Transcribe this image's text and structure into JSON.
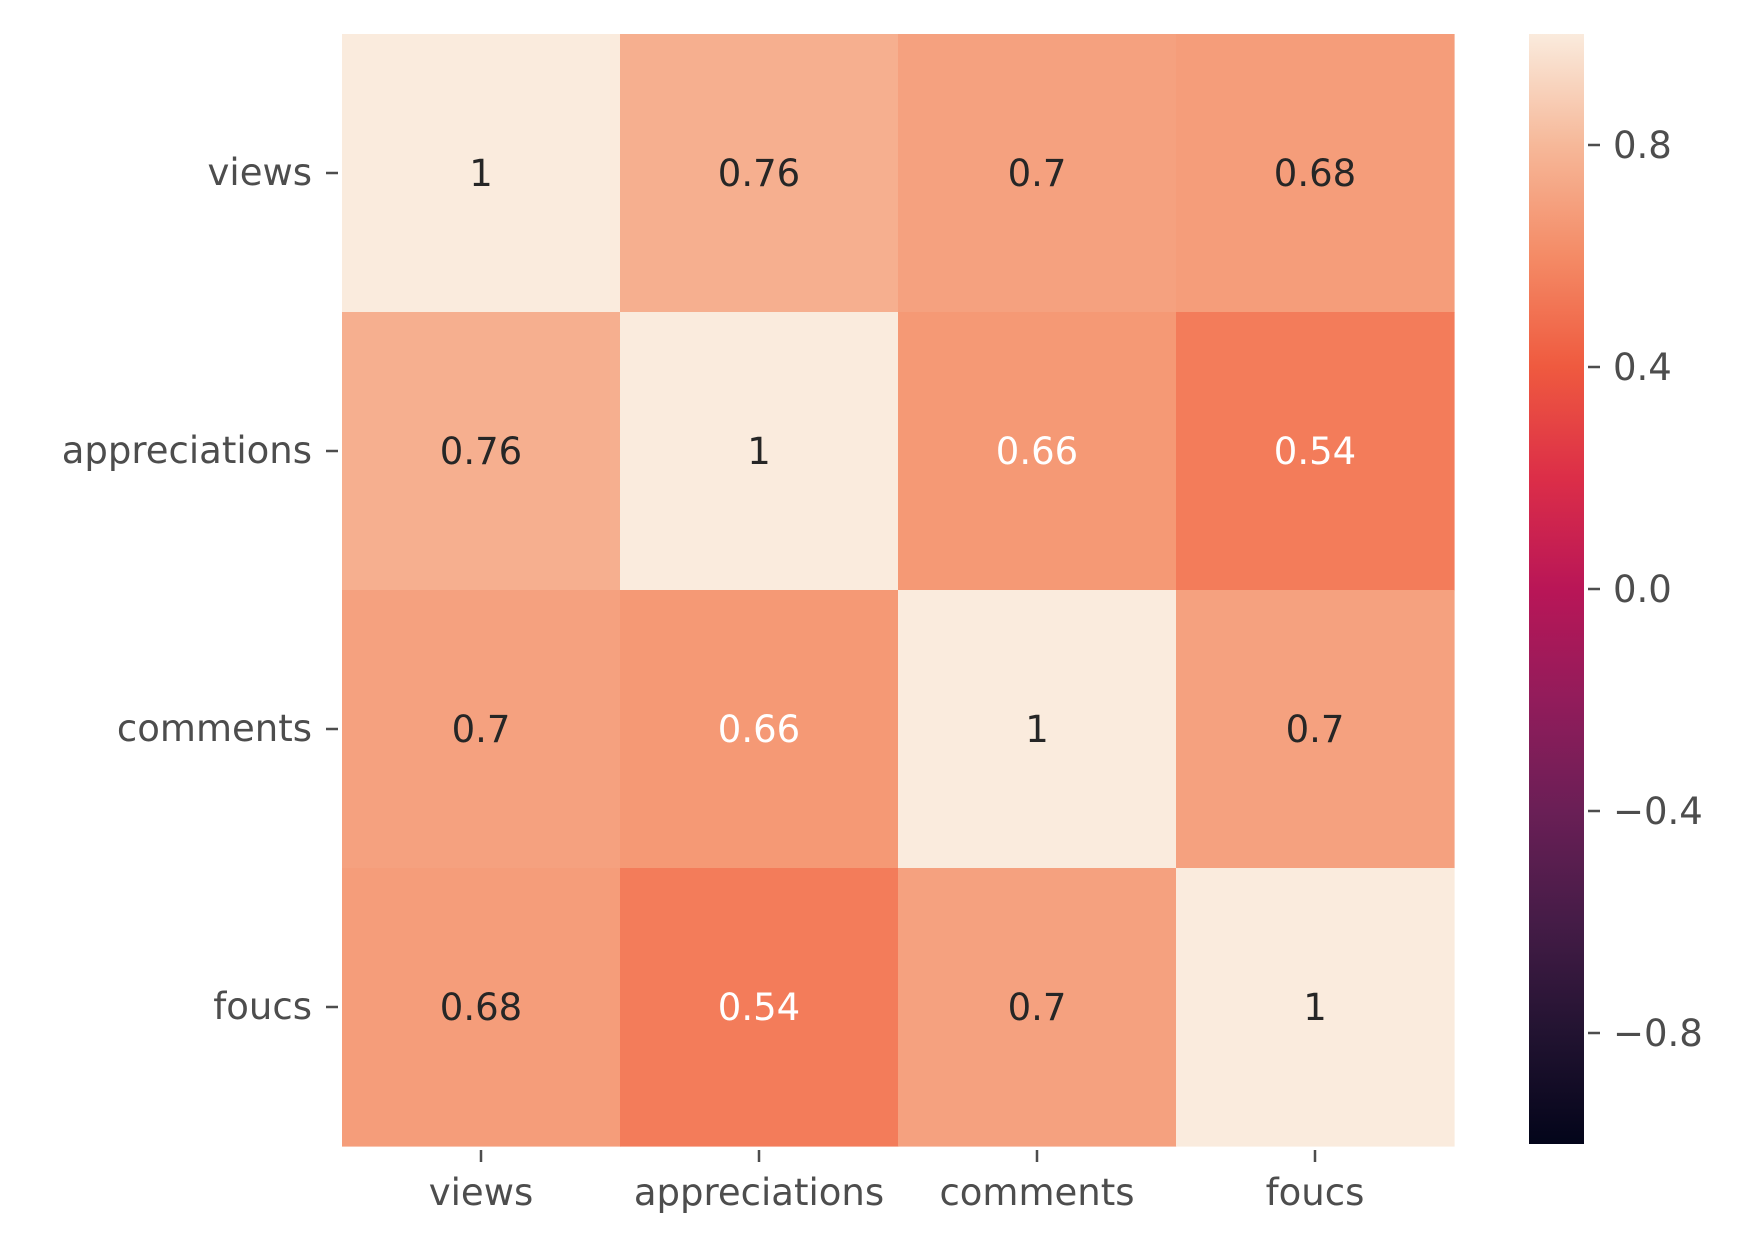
{
  "chart_data": {
    "type": "heatmap",
    "title": "",
    "xlabel": "",
    "ylabel": "",
    "x_categories": [
      "views",
      "appreciations",
      "comments",
      "foucs"
    ],
    "y_categories": [
      "views",
      "appreciations",
      "comments",
      "foucs"
    ],
    "values": [
      [
        1.0,
        0.76,
        0.7,
        0.68
      ],
      [
        0.76,
        1.0,
        0.66,
        0.54
      ],
      [
        0.7,
        0.66,
        1.0,
        0.7
      ],
      [
        0.68,
        0.54,
        0.7,
        1.0
      ]
    ],
    "cell_labels": [
      [
        "1",
        "0.76",
        "0.7",
        "0.68"
      ],
      [
        "0.76",
        "1",
        "0.66",
        "0.54"
      ],
      [
        "0.7",
        "0.66",
        "1",
        "0.7"
      ],
      [
        "0.68",
        "0.54",
        "0.7",
        "1"
      ]
    ],
    "colormap": "rocket",
    "vmin": -1,
    "vmax": 1,
    "colorbar": {
      "ticks": [
        0.8,
        0.4,
        0.0,
        -0.4,
        -0.8
      ],
      "tick_labels": [
        "0.8",
        "0.4",
        "0.0",
        "−0.4",
        "−0.8"
      ]
    }
  }
}
